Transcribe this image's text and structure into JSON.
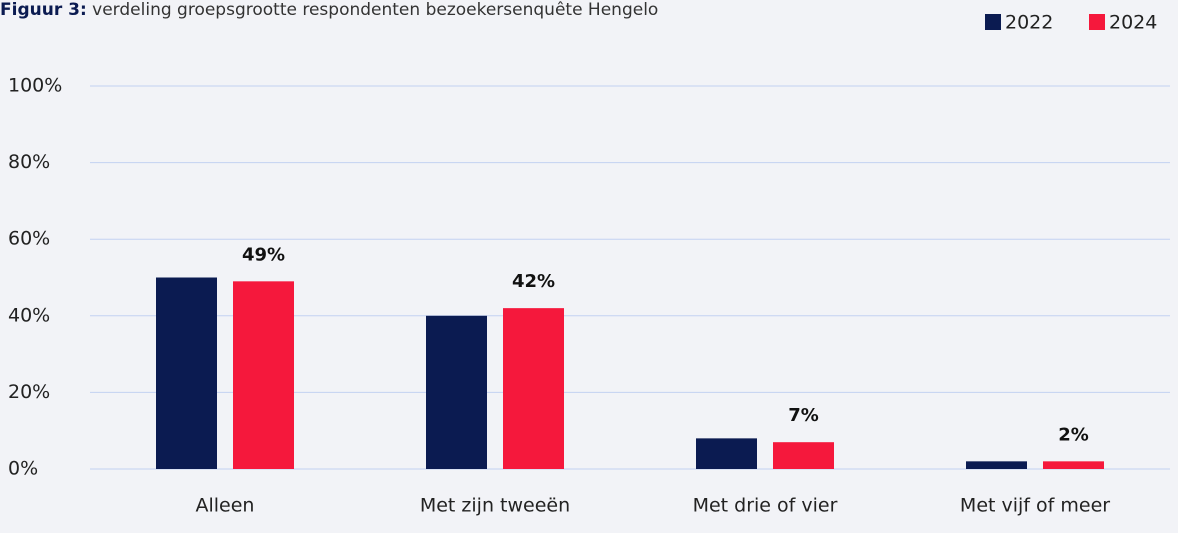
{
  "chart_data": {
    "type": "bar",
    "figure_label": "Figuur 3:",
    "title": "verdeling groepsgrootte respondenten bezoekersenquête Hengelo",
    "categories": [
      "Alleen",
      "Met zijn tweeën",
      "Met drie of vier",
      "Met vijf of meer"
    ],
    "series": [
      {
        "name": "2022",
        "color": "#0b1b51",
        "values": [
          50,
          40,
          8,
          2
        ]
      },
      {
        "name": "2024",
        "color": "#f5183c",
        "values": [
          49,
          42,
          7,
          2
        ],
        "value_labels": [
          "49%",
          "42%",
          "7%",
          "2%"
        ]
      }
    ],
    "ylim": [
      0,
      100
    ],
    "yticks": [
      {
        "value": 0,
        "label": "0%"
      },
      {
        "value": 20,
        "label": "20%"
      },
      {
        "value": 40,
        "label": "40%"
      },
      {
        "value": 60,
        "label": "60%"
      },
      {
        "value": 80,
        "label": "80%"
      },
      {
        "value": 100,
        "label": "100%"
      }
    ],
    "grid": true,
    "legend": "top-right"
  }
}
